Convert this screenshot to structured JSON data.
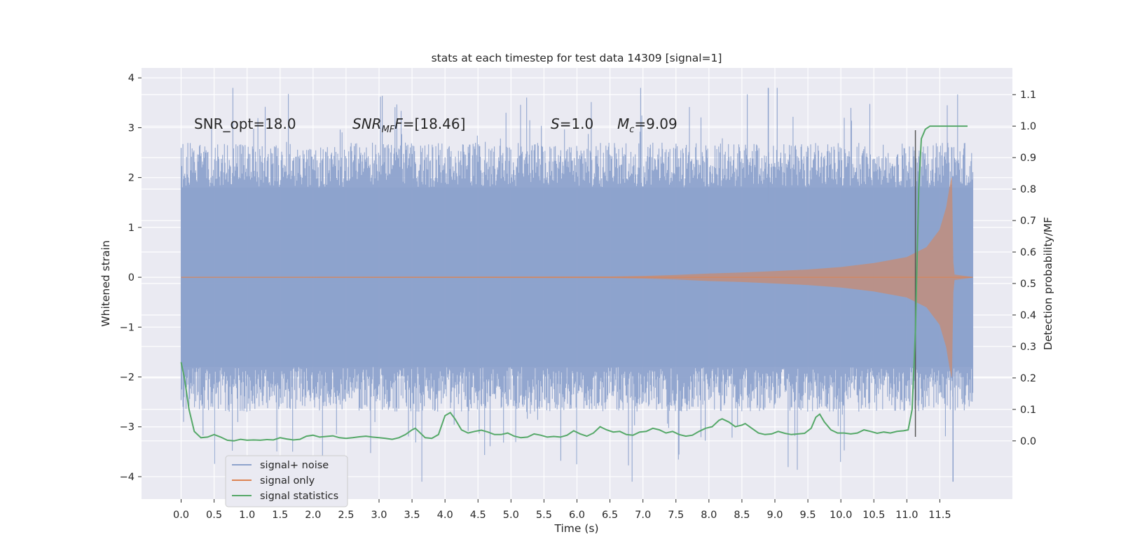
{
  "chart_data": {
    "type": "line",
    "title": "stats at each timestep for test data 14309 [signal=1]",
    "xlabel": "Time (s)",
    "ylabel": "Whitened strain",
    "y2label": "Detection probability/MF",
    "xlim": [
      -0.6,
      12.6
    ],
    "ylim": [
      -4.45,
      4.2
    ],
    "y2lim": [
      -0.185,
      1.185
    ],
    "xticks": [
      0.0,
      0.5,
      1.0,
      1.5,
      2.0,
      2.5,
      3.0,
      3.5,
      4.0,
      4.5,
      5.0,
      5.5,
      6.0,
      6.5,
      7.0,
      7.5,
      8.0,
      8.5,
      9.0,
      9.5,
      10.0,
      10.5,
      11.0,
      11.5
    ],
    "xtick_labels": [
      "0.0",
      "0.5",
      "1.0",
      "1.5",
      "2.0",
      "2.5",
      "3.0",
      "3.5",
      "4.0",
      "4.5",
      "5.0",
      "5.5",
      "6.0",
      "6.5",
      "7.0",
      "7.5",
      "8.0",
      "8.5",
      "9.0",
      "9.5",
      "10.0",
      "10.5",
      "11.0",
      "11.5"
    ],
    "yticks": [
      -4,
      -3,
      -2,
      -1,
      0,
      1,
      2,
      3,
      4
    ],
    "ytick_labels": [
      "−4",
      "−3",
      "−2",
      "−1",
      "0",
      "1",
      "2",
      "3",
      "4"
    ],
    "y2ticks": [
      0.0,
      0.1,
      0.2,
      0.3,
      0.4,
      0.5,
      0.6,
      0.7,
      0.8,
      0.9,
      1.0,
      1.1
    ],
    "y2tick_labels": [
      "0.0",
      "0.1",
      "0.2",
      "0.3",
      "0.4",
      "0.5",
      "0.6",
      "0.7",
      "0.8",
      "0.9",
      "1.0",
      "1.1"
    ],
    "grid": true,
    "legend_placement": "lower-left",
    "annotations": {
      "snr_opt": "SNR_opt=18.0",
      "snr_mf_main": "SNR",
      "snr_mf_sub": "MF",
      "snr_mf_rest": "=[18.46]",
      "s_var": "S",
      "s_rest": "=1.0",
      "mc_var": "M",
      "mc_sub": "c",
      "mc_rest": "=9.09"
    },
    "marker_line_x": 11.13,
    "series": [
      {
        "name": "signal+ noise",
        "color": "#8da2cc",
        "axis": "left",
        "kind": "noise_band",
        "x_range": [
          0.0,
          12.0
        ],
        "typical_range": [
          -1.8,
          1.8
        ],
        "extremes": {
          "max": 3.8,
          "min": -4.1
        }
      },
      {
        "name": "signal only",
        "color": "#dd8452",
        "axis": "left",
        "kind": "chirp_envelope",
        "envelope": [
          [
            0.0,
            0.0
          ],
          [
            6.5,
            0.01
          ],
          [
            7.0,
            0.02
          ],
          [
            7.5,
            0.04
          ],
          [
            8.0,
            0.07
          ],
          [
            8.5,
            0.09
          ],
          [
            9.0,
            0.12
          ],
          [
            9.5,
            0.15
          ],
          [
            10.0,
            0.2
          ],
          [
            10.5,
            0.28
          ],
          [
            11.0,
            0.4
          ],
          [
            11.3,
            0.6
          ],
          [
            11.5,
            0.95
          ],
          [
            11.6,
            1.4
          ],
          [
            11.65,
            1.8
          ],
          [
            11.68,
            2.0
          ],
          [
            11.7,
            0.3
          ],
          [
            11.72,
            0.05
          ],
          [
            12.0,
            0.0
          ]
        ]
      },
      {
        "name": "signal statistics",
        "color": "#55a868",
        "axis": "right",
        "points": [
          [
            0.0,
            0.25
          ],
          [
            0.05,
            0.2
          ],
          [
            0.12,
            0.1
          ],
          [
            0.2,
            0.03
          ],
          [
            0.3,
            0.01
          ],
          [
            0.4,
            0.012
          ],
          [
            0.5,
            0.02
          ],
          [
            0.6,
            0.012
          ],
          [
            0.7,
            0.002
          ],
          [
            0.8,
            0.0
          ],
          [
            0.9,
            0.005
          ],
          [
            1.0,
            0.002
          ],
          [
            1.1,
            0.003
          ],
          [
            1.2,
            0.002
          ],
          [
            1.3,
            0.004
          ],
          [
            1.4,
            0.003
          ],
          [
            1.5,
            0.01
          ],
          [
            1.6,
            0.006
          ],
          [
            1.7,
            0.003
          ],
          [
            1.8,
            0.005
          ],
          [
            1.9,
            0.015
          ],
          [
            2.0,
            0.018
          ],
          [
            2.1,
            0.012
          ],
          [
            2.2,
            0.014
          ],
          [
            2.3,
            0.016
          ],
          [
            2.4,
            0.01
          ],
          [
            2.5,
            0.008
          ],
          [
            2.6,
            0.01
          ],
          [
            2.7,
            0.013
          ],
          [
            2.8,
            0.015
          ],
          [
            2.9,
            0.012
          ],
          [
            3.0,
            0.01
          ],
          [
            3.1,
            0.008
          ],
          [
            3.2,
            0.005
          ],
          [
            3.3,
            0.01
          ],
          [
            3.4,
            0.02
          ],
          [
            3.5,
            0.035
          ],
          [
            3.55,
            0.04
          ],
          [
            3.6,
            0.03
          ],
          [
            3.7,
            0.01
          ],
          [
            3.8,
            0.008
          ],
          [
            3.9,
            0.02
          ],
          [
            4.0,
            0.08
          ],
          [
            4.08,
            0.09
          ],
          [
            4.15,
            0.07
          ],
          [
            4.25,
            0.035
          ],
          [
            4.35,
            0.025
          ],
          [
            4.45,
            0.03
          ],
          [
            4.55,
            0.034
          ],
          [
            4.65,
            0.028
          ],
          [
            4.75,
            0.02
          ],
          [
            4.85,
            0.02
          ],
          [
            4.95,
            0.025
          ],
          [
            5.05,
            0.015
          ],
          [
            5.15,
            0.01
          ],
          [
            5.25,
            0.012
          ],
          [
            5.35,
            0.022
          ],
          [
            5.45,
            0.018
          ],
          [
            5.55,
            0.012
          ],
          [
            5.65,
            0.014
          ],
          [
            5.75,
            0.012
          ],
          [
            5.85,
            0.018
          ],
          [
            5.95,
            0.032
          ],
          [
            6.05,
            0.022
          ],
          [
            6.15,
            0.015
          ],
          [
            6.25,
            0.025
          ],
          [
            6.35,
            0.045
          ],
          [
            6.45,
            0.035
          ],
          [
            6.55,
            0.028
          ],
          [
            6.65,
            0.03
          ],
          [
            6.75,
            0.02
          ],
          [
            6.85,
            0.018
          ],
          [
            6.95,
            0.028
          ],
          [
            7.05,
            0.03
          ],
          [
            7.15,
            0.04
          ],
          [
            7.25,
            0.035
          ],
          [
            7.35,
            0.025
          ],
          [
            7.45,
            0.03
          ],
          [
            7.55,
            0.02
          ],
          [
            7.65,
            0.015
          ],
          [
            7.75,
            0.018
          ],
          [
            7.85,
            0.03
          ],
          [
            7.95,
            0.04
          ],
          [
            8.05,
            0.045
          ],
          [
            8.15,
            0.065
          ],
          [
            8.2,
            0.07
          ],
          [
            8.3,
            0.06
          ],
          [
            8.4,
            0.045
          ],
          [
            8.5,
            0.05
          ],
          [
            8.55,
            0.055
          ],
          [
            8.65,
            0.04
          ],
          [
            8.75,
            0.025
          ],
          [
            8.85,
            0.02
          ],
          [
            8.95,
            0.022
          ],
          [
            9.05,
            0.03
          ],
          [
            9.15,
            0.024
          ],
          [
            9.25,
            0.02
          ],
          [
            9.35,
            0.022
          ],
          [
            9.45,
            0.024
          ],
          [
            9.55,
            0.04
          ],
          [
            9.62,
            0.075
          ],
          [
            9.68,
            0.085
          ],
          [
            9.75,
            0.06
          ],
          [
            9.85,
            0.035
          ],
          [
            9.95,
            0.025
          ],
          [
            10.05,
            0.025
          ],
          [
            10.15,
            0.022
          ],
          [
            10.25,
            0.025
          ],
          [
            10.35,
            0.035
          ],
          [
            10.45,
            0.03
          ],
          [
            10.55,
            0.024
          ],
          [
            10.65,
            0.028
          ],
          [
            10.75,
            0.025
          ],
          [
            10.85,
            0.03
          ],
          [
            10.95,
            0.032
          ],
          [
            11.02,
            0.035
          ],
          [
            11.08,
            0.1
          ],
          [
            11.13,
            0.35
          ],
          [
            11.18,
            0.8
          ],
          [
            11.22,
            0.96
          ],
          [
            11.28,
            0.99
          ],
          [
            11.35,
            1.0
          ],
          [
            11.5,
            1.0
          ],
          [
            11.7,
            1.0
          ],
          [
            11.85,
            1.0
          ],
          [
            11.92,
            1.0
          ]
        ]
      }
    ]
  }
}
